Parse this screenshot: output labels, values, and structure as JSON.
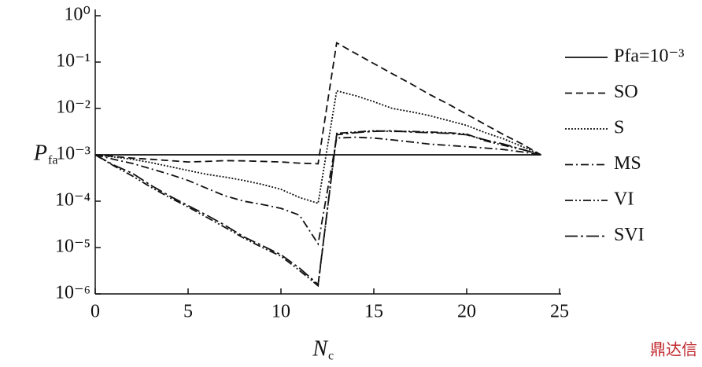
{
  "chart_data": {
    "type": "line",
    "log_y": true,
    "x": [
      0,
      1,
      2,
      3,
      4,
      5,
      6,
      7,
      8,
      9,
      10,
      11,
      12,
      13,
      14,
      15,
      16,
      17,
      18,
      19,
      20,
      21,
      22,
      23,
      24
    ],
    "xlabel": {
      "symbol": "N",
      "subscript": "c"
    },
    "ylabel": {
      "symbol": "P",
      "subscript": "fa"
    },
    "xlim": [
      0,
      25
    ],
    "xticks": [
      0,
      5,
      10,
      15,
      20,
      25
    ],
    "ylim": [
      1e-06,
      1
    ],
    "yticks": [
      {
        "value": 1e-06,
        "label": "10⁻⁶"
      },
      {
        "value": 1e-05,
        "label": "10⁻⁵"
      },
      {
        "value": 0.0001,
        "label": "10⁻⁴"
      },
      {
        "value": 0.001,
        "label": "10⁻³"
      },
      {
        "value": 0.01,
        "label": "10⁻²"
      },
      {
        "value": 0.1,
        "label": "10⁻¹"
      },
      {
        "value": 1,
        "label": "10⁰"
      }
    ],
    "legend": "right",
    "series": [
      {
        "name": "Pfa=10⁻³",
        "color": "#111111",
        "dash": "none",
        "values": [
          0.001,
          0.001,
          0.001,
          0.001,
          0.001,
          0.001,
          0.001,
          0.001,
          0.001,
          0.001,
          0.001,
          0.001,
          0.001,
          0.001,
          0.001,
          0.001,
          0.001,
          0.001,
          0.001,
          0.001,
          0.001,
          0.001,
          0.001,
          0.001,
          0.001
        ]
      },
      {
        "name": "SO",
        "color": "#111111",
        "dash": "9,5",
        "values": [
          0.001,
          0.00092,
          0.00085,
          0.0008,
          0.00075,
          0.0007,
          0.00072,
          0.00075,
          0.00074,
          0.00072,
          0.0007,
          0.00066,
          0.00064,
          0.26,
          0.155,
          0.093,
          0.056,
          0.034,
          0.02,
          0.0125,
          0.0075,
          0.0045,
          0.0027,
          0.0017,
          0.001
        ]
      },
      {
        "name": "S",
        "color": "#111111",
        "dash": "2,2",
        "values": [
          0.001,
          0.0009,
          0.0008,
          0.00068,
          0.00056,
          0.00046,
          0.00038,
          0.00033,
          0.00028,
          0.00023,
          0.00018,
          0.00012,
          9e-05,
          0.024,
          0.019,
          0.014,
          0.01,
          0.0085,
          0.007,
          0.0055,
          0.0043,
          0.003,
          0.0022,
          0.0015,
          0.001
        ]
      },
      {
        "name": "MS",
        "color": "#111111",
        "dash": "10,4,2,4",
        "values": [
          0.001,
          0.0008,
          0.00065,
          0.0005,
          0.00038,
          0.00028,
          0.00019,
          0.00013,
          0.0001,
          8.5e-05,
          7e-05,
          5e-05,
          1.2e-05,
          0.0023,
          0.0024,
          0.0023,
          0.0021,
          0.0019,
          0.0017,
          0.0016,
          0.0015,
          0.0014,
          0.0013,
          0.00115,
          0.001
        ]
      },
      {
        "name": "VI",
        "color": "#111111",
        "dash": "10,3,2,3,2,3",
        "values": [
          0.001,
          0.00058,
          0.00035,
          0.0002,
          0.00012,
          7.5e-05,
          4.5e-05,
          2.7e-05,
          1.6e-05,
          1e-05,
          6.5e-06,
          3.2e-06,
          1.5e-06,
          0.0029,
          0.0031,
          0.0033,
          0.0032,
          0.0032,
          0.0031,
          0.003,
          0.0028,
          0.002,
          0.0016,
          0.0013,
          0.001
        ]
      },
      {
        "name": "SVI",
        "color": "#111111",
        "dash": "16,4,3,4",
        "values": [
          0.001,
          0.0006,
          0.0004,
          0.00022,
          0.00013,
          8e-05,
          5e-05,
          3e-05,
          1.7e-05,
          1.1e-05,
          7e-06,
          3.6e-06,
          1.6e-06,
          0.0027,
          0.003,
          0.0032,
          0.0033,
          0.0031,
          0.003,
          0.0029,
          0.0027,
          0.0021,
          0.0017,
          0.0013,
          0.001
        ]
      }
    ]
  },
  "watermark": "鼎达信"
}
